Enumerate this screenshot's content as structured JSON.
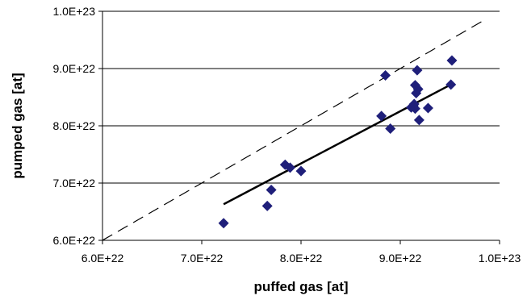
{
  "chart_data": {
    "type": "scatter",
    "title": "",
    "xlabel": "puffed gas [at]",
    "ylabel": "pumped gas [at]",
    "xlim": [
      6e+22,
      1e+23
    ],
    "ylim": [
      6e+22,
      1e+23
    ],
    "x_ticks": [
      6e+22,
      7e+22,
      8e+22,
      9e+22,
      1e+23
    ],
    "y_ticks": [
      6e+22,
      7e+22,
      8e+22,
      9e+22,
      1e+23
    ],
    "x_tick_labels": [
      "6.0E+22",
      "7.0E+22",
      "8.0E+22",
      "9.0E+22",
      "1.0E+23"
    ],
    "y_tick_labels": [
      "6.0E+22",
      "7.0E+22",
      "8.0E+22",
      "9.0E+22",
      "1.0E+23"
    ],
    "grid": "horizontal",
    "legend": "none",
    "colors": {
      "marker": "#1f1f7a",
      "trend": "#000000",
      "reference": "#000000",
      "gridline": "#000000"
    },
    "series": [
      {
        "marker": "diamond",
        "x": [
          7.22e+22,
          7.66e+22,
          7.7e+22,
          7.84e+22,
          7.89e+22,
          8e+22,
          8.81e+22,
          8.85e+22,
          8.9e+22,
          9.11e+22,
          9.13e+22,
          9.14e+22,
          9.15e+22,
          9.15e+22,
          9.16e+22,
          9.17e+22,
          9.18e+22,
          9.19e+22,
          9.28e+22,
          9.51e+22,
          9.52e+22
        ],
        "y": [
          6.3e+22,
          6.6e+22,
          6.88e+22,
          7.32e+22,
          7.27e+22,
          7.21e+22,
          8.17e+22,
          8.88e+22,
          7.95e+22,
          8.32e+22,
          8.35e+22,
          8.38e+22,
          8.71e+22,
          8.3e+22,
          8.57e+22,
          8.97e+22,
          8.64e+22,
          8.1e+22,
          8.31e+22,
          8.72e+22,
          9.14e+22
        ]
      }
    ],
    "trend_line": {
      "x": [
        7.22e+22,
        9.52e+22
      ],
      "y": [
        6.63e+22,
        8.73e+22
      ]
    },
    "reference_line": {
      "x": [
        6e+22,
        9.85e+22
      ],
      "y": [
        6e+22,
        9.85e+22
      ]
    }
  }
}
